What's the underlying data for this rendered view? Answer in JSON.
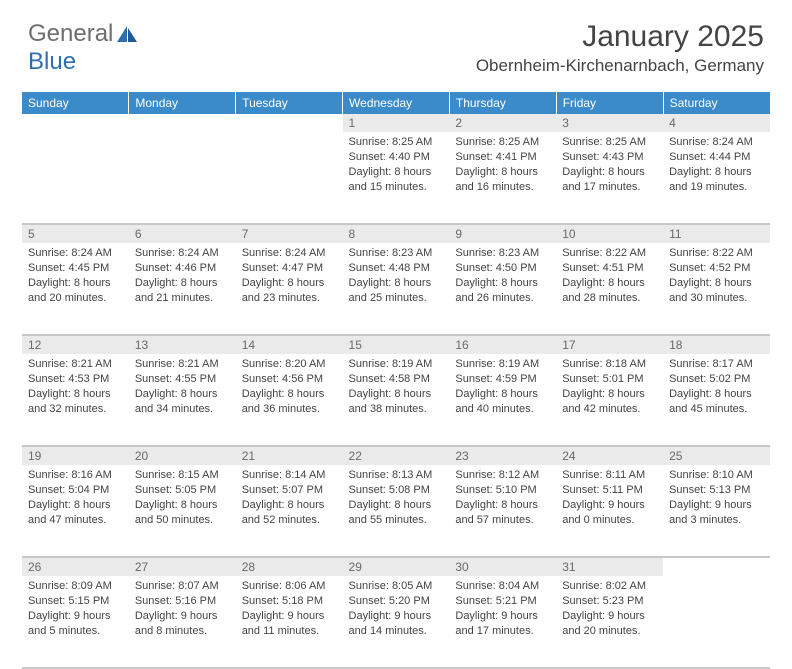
{
  "logo": {
    "general": "General",
    "blue": "Blue"
  },
  "title": "January 2025",
  "location": "Obernheim-Kirchenarnbach, Germany",
  "colors": {
    "header_bg": "#3b8bca",
    "header_text": "#ffffff",
    "daynum_bg": "#eaeaea",
    "daynum_text": "#6a6a6a",
    "body_text": "#444444",
    "divider": "#c7c7c7",
    "logo_gray": "#6e6e6e",
    "logo_blue": "#2f6fb0"
  },
  "weekdays": [
    "Sunday",
    "Monday",
    "Tuesday",
    "Wednesday",
    "Thursday",
    "Friday",
    "Saturday"
  ],
  "weeks": [
    [
      null,
      null,
      null,
      {
        "n": "1",
        "sr": "8:25 AM",
        "ss": "4:40 PM",
        "dl": "8 hours and 15 minutes."
      },
      {
        "n": "2",
        "sr": "8:25 AM",
        "ss": "4:41 PM",
        "dl": "8 hours and 16 minutes."
      },
      {
        "n": "3",
        "sr": "8:25 AM",
        "ss": "4:43 PM",
        "dl": "8 hours and 17 minutes."
      },
      {
        "n": "4",
        "sr": "8:24 AM",
        "ss": "4:44 PM",
        "dl": "8 hours and 19 minutes."
      }
    ],
    [
      {
        "n": "5",
        "sr": "8:24 AM",
        "ss": "4:45 PM",
        "dl": "8 hours and 20 minutes."
      },
      {
        "n": "6",
        "sr": "8:24 AM",
        "ss": "4:46 PM",
        "dl": "8 hours and 21 minutes."
      },
      {
        "n": "7",
        "sr": "8:24 AM",
        "ss": "4:47 PM",
        "dl": "8 hours and 23 minutes."
      },
      {
        "n": "8",
        "sr": "8:23 AM",
        "ss": "4:48 PM",
        "dl": "8 hours and 25 minutes."
      },
      {
        "n": "9",
        "sr": "8:23 AM",
        "ss": "4:50 PM",
        "dl": "8 hours and 26 minutes."
      },
      {
        "n": "10",
        "sr": "8:22 AM",
        "ss": "4:51 PM",
        "dl": "8 hours and 28 minutes."
      },
      {
        "n": "11",
        "sr": "8:22 AM",
        "ss": "4:52 PM",
        "dl": "8 hours and 30 minutes."
      }
    ],
    [
      {
        "n": "12",
        "sr": "8:21 AM",
        "ss": "4:53 PM",
        "dl": "8 hours and 32 minutes."
      },
      {
        "n": "13",
        "sr": "8:21 AM",
        "ss": "4:55 PM",
        "dl": "8 hours and 34 minutes."
      },
      {
        "n": "14",
        "sr": "8:20 AM",
        "ss": "4:56 PM",
        "dl": "8 hours and 36 minutes."
      },
      {
        "n": "15",
        "sr": "8:19 AM",
        "ss": "4:58 PM",
        "dl": "8 hours and 38 minutes."
      },
      {
        "n": "16",
        "sr": "8:19 AM",
        "ss": "4:59 PM",
        "dl": "8 hours and 40 minutes."
      },
      {
        "n": "17",
        "sr": "8:18 AM",
        "ss": "5:01 PM",
        "dl": "8 hours and 42 minutes."
      },
      {
        "n": "18",
        "sr": "8:17 AM",
        "ss": "5:02 PM",
        "dl": "8 hours and 45 minutes."
      }
    ],
    [
      {
        "n": "19",
        "sr": "8:16 AM",
        "ss": "5:04 PM",
        "dl": "8 hours and 47 minutes."
      },
      {
        "n": "20",
        "sr": "8:15 AM",
        "ss": "5:05 PM",
        "dl": "8 hours and 50 minutes."
      },
      {
        "n": "21",
        "sr": "8:14 AM",
        "ss": "5:07 PM",
        "dl": "8 hours and 52 minutes."
      },
      {
        "n": "22",
        "sr": "8:13 AM",
        "ss": "5:08 PM",
        "dl": "8 hours and 55 minutes."
      },
      {
        "n": "23",
        "sr": "8:12 AM",
        "ss": "5:10 PM",
        "dl": "8 hours and 57 minutes."
      },
      {
        "n": "24",
        "sr": "8:11 AM",
        "ss": "5:11 PM",
        "dl": "9 hours and 0 minutes."
      },
      {
        "n": "25",
        "sr": "8:10 AM",
        "ss": "5:13 PM",
        "dl": "9 hours and 3 minutes."
      }
    ],
    [
      {
        "n": "26",
        "sr": "8:09 AM",
        "ss": "5:15 PM",
        "dl": "9 hours and 5 minutes."
      },
      {
        "n": "27",
        "sr": "8:07 AM",
        "ss": "5:16 PM",
        "dl": "9 hours and 8 minutes."
      },
      {
        "n": "28",
        "sr": "8:06 AM",
        "ss": "5:18 PM",
        "dl": "9 hours and 11 minutes."
      },
      {
        "n": "29",
        "sr": "8:05 AM",
        "ss": "5:20 PM",
        "dl": "9 hours and 14 minutes."
      },
      {
        "n": "30",
        "sr": "8:04 AM",
        "ss": "5:21 PM",
        "dl": "9 hours and 17 minutes."
      },
      {
        "n": "31",
        "sr": "8:02 AM",
        "ss": "5:23 PM",
        "dl": "9 hours and 20 minutes."
      },
      null
    ]
  ],
  "labels": {
    "sunrise": "Sunrise:",
    "sunset": "Sunset:",
    "daylight": "Daylight:"
  }
}
